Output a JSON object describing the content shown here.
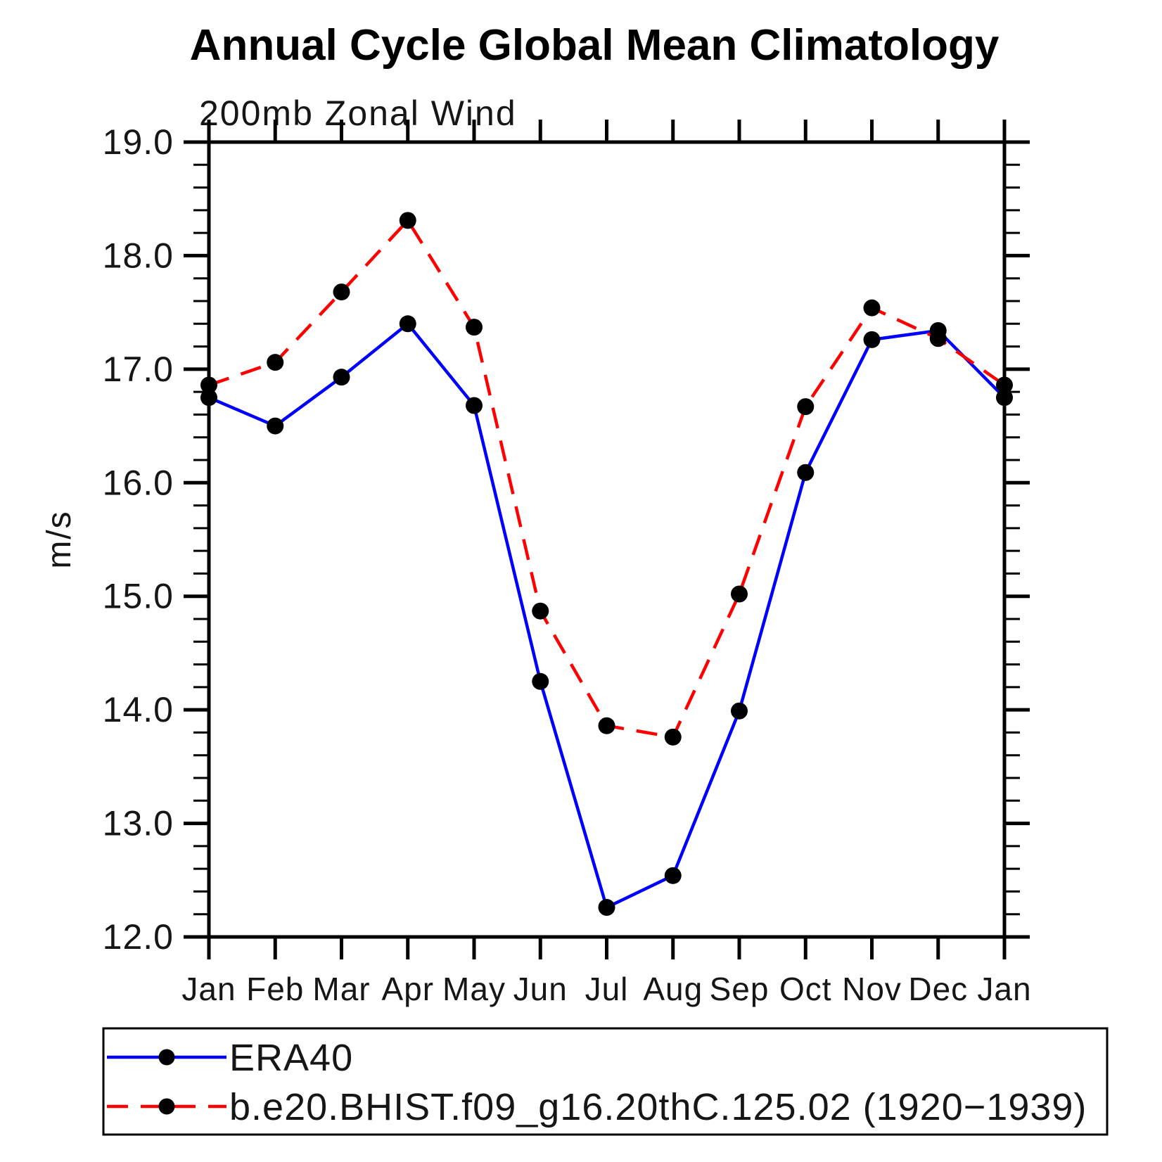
{
  "page": {
    "background": "#ffffff"
  },
  "chart_data": {
    "type": "line",
    "title": "Annual Cycle Global Mean Climatology",
    "subtitle": "200mb Zonal Wind",
    "ylabel": "m/s",
    "xlabel": "",
    "categories": [
      "Jan",
      "Feb",
      "Mar",
      "Apr",
      "May",
      "Jun",
      "Jul",
      "Aug",
      "Sep",
      "Oct",
      "Nov",
      "Dec",
      "Jan"
    ],
    "ylim": [
      12.0,
      19.0
    ],
    "ytick_major_step": 1.0,
    "ytick_minor_step": 0.2,
    "ytick_labels": [
      "12.0",
      "13.0",
      "14.0",
      "15.0",
      "16.0",
      "17.0",
      "18.0",
      "19.0"
    ],
    "grid": false,
    "legend_position": "bottom-left",
    "axis_color": "#000000",
    "marker_color": "#000000",
    "series": [
      {
        "name": "ERA40",
        "color": "#0000ff",
        "line_style": "solid",
        "marker": "filled-circle",
        "values": [
          16.75,
          16.5,
          16.93,
          17.4,
          16.68,
          14.25,
          12.26,
          12.54,
          13.99,
          16.09,
          17.26,
          17.34,
          16.75
        ]
      },
      {
        "name": "b.e20.BHIST.f09_g16.20thC.125.02 (1920−1939)",
        "color": "#ff0000",
        "line_style": "dashed",
        "marker": "filled-circle",
        "values": [
          16.86,
          17.06,
          17.68,
          18.31,
          17.37,
          14.87,
          13.86,
          13.76,
          15.02,
          16.67,
          17.54,
          17.27,
          16.86
        ]
      }
    ]
  }
}
